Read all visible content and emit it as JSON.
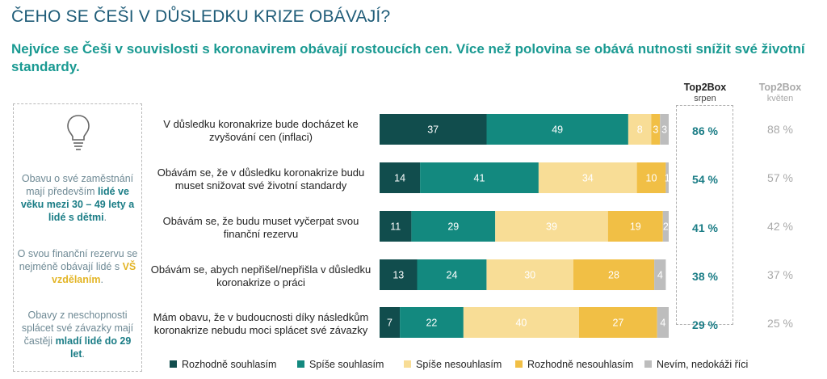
{
  "header": {
    "title": "ČEHO SE ČEŠI V DŮSLEDKU KRIZE OBÁVAJÍ?",
    "subtitle": "Nejvíce se Češi v souvislosti s koronavirem obávají rostoucích cen. Více než polovina se obává nutnosti snížit své životní standardy."
  },
  "sidebar": {
    "icon": "lightbulb-icon",
    "note1": {
      "pre": "Obavu o své zaměstnání mají především ",
      "bold": "lidé ve věku mezi 30 – 49 lety a lidé s dětmi",
      "post": "."
    },
    "note2": {
      "pre": "O svou finanční rezervu se nejméně obávají lidé s ",
      "highlight": "VŠ vzdělaním",
      "post": "."
    },
    "note3": {
      "pre": "Obavy z neschopnosti splácet své závazky mají častěji ",
      "bold": "mladí lidé do 29 let",
      "post": "."
    }
  },
  "top2box": {
    "current_label": "Top2Box",
    "current_sub": "srpen",
    "previous_label": "Top2Box",
    "previous_sub": "květen",
    "current": [
      "86 %",
      "54 %",
      "41 %",
      "38 %",
      "29 %"
    ],
    "previous": [
      "88 %",
      "57 %",
      "42 %",
      "37 %",
      "25 %"
    ]
  },
  "chart_data": {
    "type": "bar",
    "orientation": "horizontal",
    "stacked": true,
    "categories": [
      "V důsledku koronakrize bude docházet ke zvyšování cen (inflaci)",
      "Obávám se, že v důsledku koronakrize budu muset snižovat své životní standardy",
      "Obávám se, že budu muset vyčerpat svou finanční rezervu",
      "Obávám se, abych nepřišel/nepřišla v důsledku koronakrize o práci",
      "Mám obavu, že v budoucnosti díky následkům koronakrize nebudu moci splácet své závazky"
    ],
    "series": [
      {
        "name": "Rozhodně souhlasím",
        "color": "#114d4d",
        "values": [
          37,
          14,
          11,
          13,
          7
        ]
      },
      {
        "name": "Spíše souhlasím",
        "color": "#13897f",
        "values": [
          49,
          41,
          29,
          24,
          22
        ]
      },
      {
        "name": "Spíše nesouhlasím",
        "color": "#f8dd96",
        "values": [
          8,
          34,
          39,
          30,
          40
        ]
      },
      {
        "name": "Rozhodně nesouhlasím",
        "color": "#f1bf45",
        "values": [
          3,
          10,
          19,
          28,
          27
        ]
      },
      {
        "name": "Nevím, nedokáži říci",
        "color": "#bdbdbd",
        "values": [
          3,
          1,
          2,
          4,
          4
        ]
      }
    ],
    "xlim": [
      0,
      100
    ],
    "legend_position": "bottom",
    "grid": false
  }
}
